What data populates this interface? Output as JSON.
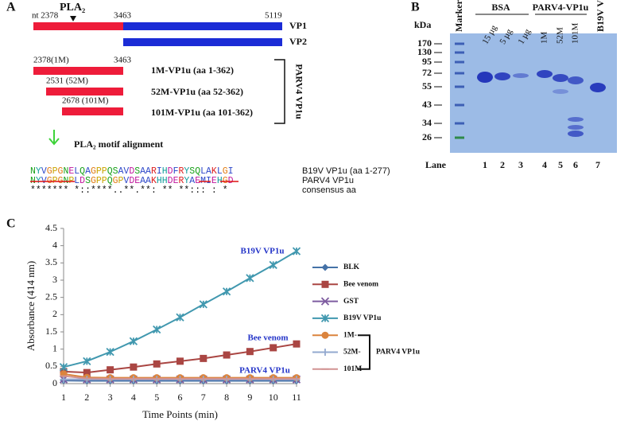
{
  "panel_a": {
    "label": "A",
    "pla2": "PLA₂",
    "nt_start": "nt 2378",
    "vp1_mid": "3463",
    "vp1_end": "5119",
    "vp1": "VP1",
    "vp2": "VP2",
    "c1_pos": "2378(1M)",
    "c1_end": "3463",
    "c1_name": "1M-VP1u (aa 1-362)",
    "c2_pos": "2531 (52M)",
    "c2_name": "52M-VP1u (aa 52-362)",
    "c3_pos": "2678 (101M)",
    "c3_name": "101M-VP1u (aa 101-362)",
    "group": "PARV4 VP1u",
    "motif": "PLA₂ motif alignment",
    "alignment": [
      {
        "seq": "NYVGPGNELQAGPPQSAVDSAARIHDFRYSQLAKLGI",
        "label": "B19V VP1u (aa 1-277)"
      },
      {
        "seq": "NYVGPGNPLDSGPPQGPVDEAAKHHDERYAEMIEHGD",
        "label": "PARV4 VP1u"
      },
      {
        "seq": "******* *::****..**.**: ** **::: : *",
        "label": "consensus aa"
      }
    ]
  },
  "panel_b": {
    "label": "B",
    "kda": "kDa",
    "marker": "Marker",
    "bsa": "BSA",
    "parv4": "PARV4-VP1u",
    "b19v": "B19V VP1u",
    "sizes": [
      "170",
      "130",
      "95",
      "72",
      "55",
      "43",
      "34",
      "26"
    ],
    "amounts": [
      "15 µg",
      "5 µg",
      "1 µg"
    ],
    "constructs": [
      "1M",
      "52M",
      "101M"
    ],
    "lane": "Lane",
    "lanes": [
      "1",
      "2",
      "3",
      "4",
      "5",
      "6",
      "7"
    ]
  },
  "chart_data": {
    "type": "line",
    "panel_label": "C",
    "ylabel": "Absorbance (414 nm)",
    "xlabel": "Time Points (min)",
    "x": [
      1,
      2,
      3,
      4,
      5,
      6,
      7,
      8,
      9,
      10,
      11
    ],
    "xlim": [
      1,
      11
    ],
    "xticks": [
      1,
      2,
      3,
      4,
      5,
      6,
      7,
      8,
      9,
      10,
      11
    ],
    "ylim": [
      0,
      4.5
    ],
    "yticks": [
      0,
      0.5,
      1,
      1.5,
      2,
      2.5,
      3,
      3.5,
      4,
      4.5
    ],
    "grid": false,
    "series": [
      {
        "name": "BLK",
        "color": "#4572a7",
        "marker": "diamond",
        "values": [
          0.09,
          0.08,
          0.08,
          0.08,
          0.08,
          0.08,
          0.08,
          0.08,
          0.08,
          0.08,
          0.08
        ]
      },
      {
        "name": "Bee venom",
        "color": "#aa4643",
        "marker": "square",
        "values": [
          0.35,
          0.32,
          0.4,
          0.48,
          0.57,
          0.65,
          0.73,
          0.83,
          0.93,
          1.04,
          1.15
        ]
      },
      {
        "name": "GST",
        "color": "#7e5ca0",
        "marker": "x",
        "values": [
          0.12,
          0.12,
          0.12,
          0.12,
          0.12,
          0.12,
          0.12,
          0.12,
          0.12,
          0.12,
          0.12
        ]
      },
      {
        "name": "B19V VP1u",
        "color": "#4198af",
        "marker": "star",
        "values": [
          0.48,
          0.65,
          0.92,
          1.23,
          1.57,
          1.92,
          2.3,
          2.67,
          3.06,
          3.44,
          3.84
        ]
      },
      {
        "name": "1M-",
        "color": "#db843d",
        "marker": "circle",
        "values": [
          0.28,
          0.18,
          0.17,
          0.17,
          0.17,
          0.17,
          0.17,
          0.17,
          0.17,
          0.17,
          0.17
        ]
      },
      {
        "name": "52M-",
        "color": "#93a9cf",
        "marker": "plus",
        "values": [
          0.12,
          0.12,
          0.12,
          0.12,
          0.12,
          0.12,
          0.12,
          0.12,
          0.12,
          0.12,
          0.12
        ]
      },
      {
        "name": "101M-",
        "color": "#d19392",
        "marker": "dash",
        "values": [
          0.22,
          0.15,
          0.14,
          0.14,
          0.14,
          0.14,
          0.14,
          0.14,
          0.14,
          0.14,
          0.14
        ]
      }
    ],
    "annotations": [
      "B19V VP1u",
      "Bee venom",
      "PARV4 VP1u"
    ],
    "legend_group": "PARV4 VP1u"
  }
}
